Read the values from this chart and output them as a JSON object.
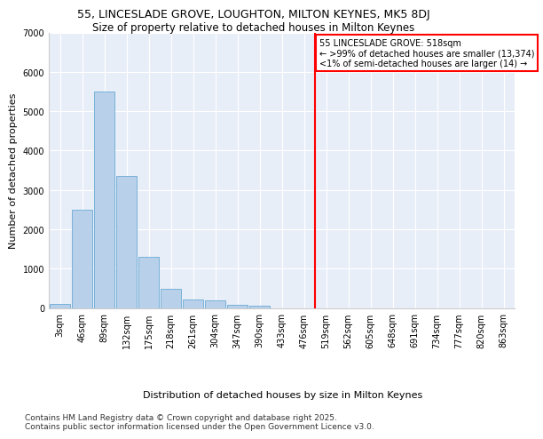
{
  "title": "55, LINCESLADE GROVE, LOUGHTON, MILTON KEYNES, MK5 8DJ",
  "subtitle": "Size of property relative to detached houses in Milton Keynes",
  "xlabel": "Distribution of detached houses by size in Milton Keynes",
  "ylabel": "Number of detached properties",
  "categories": [
    "3sqm",
    "46sqm",
    "89sqm",
    "132sqm",
    "175sqm",
    "218sqm",
    "261sqm",
    "304sqm",
    "347sqm",
    "390sqm",
    "433sqm",
    "476sqm",
    "519sqm",
    "562sqm",
    "605sqm",
    "648sqm",
    "691sqm",
    "734sqm",
    "777sqm",
    "820sqm",
    "863sqm"
  ],
  "bar_heights": [
    100,
    2500,
    5500,
    3350,
    1300,
    480,
    220,
    200,
    90,
    50,
    0,
    0,
    0,
    0,
    0,
    0,
    0,
    0,
    0,
    0,
    0
  ],
  "bar_color": "#b8d0ea",
  "bar_edge_color": "#6aaad4",
  "vline_x_index": 12,
  "vline_color": "red",
  "annotation_text": "55 LINCESLADE GROVE: 518sqm\n← >99% of detached houses are smaller (13,374)\n<1% of semi-detached houses are larger (14) →",
  "ylim": [
    0,
    7000
  ],
  "yticks": [
    0,
    1000,
    2000,
    3000,
    4000,
    5000,
    6000,
    7000
  ],
  "bg_color": "#e8eef8",
  "grid_color": "#ffffff",
  "footer_line1": "Contains HM Land Registry data © Crown copyright and database right 2025.",
  "footer_line2": "Contains public sector information licensed under the Open Government Licence v3.0.",
  "title_fontsize": 9,
  "subtitle_fontsize": 8.5,
  "axis_label_fontsize": 8,
  "tick_fontsize": 7,
  "annotation_fontsize": 7,
  "footer_fontsize": 6.5
}
